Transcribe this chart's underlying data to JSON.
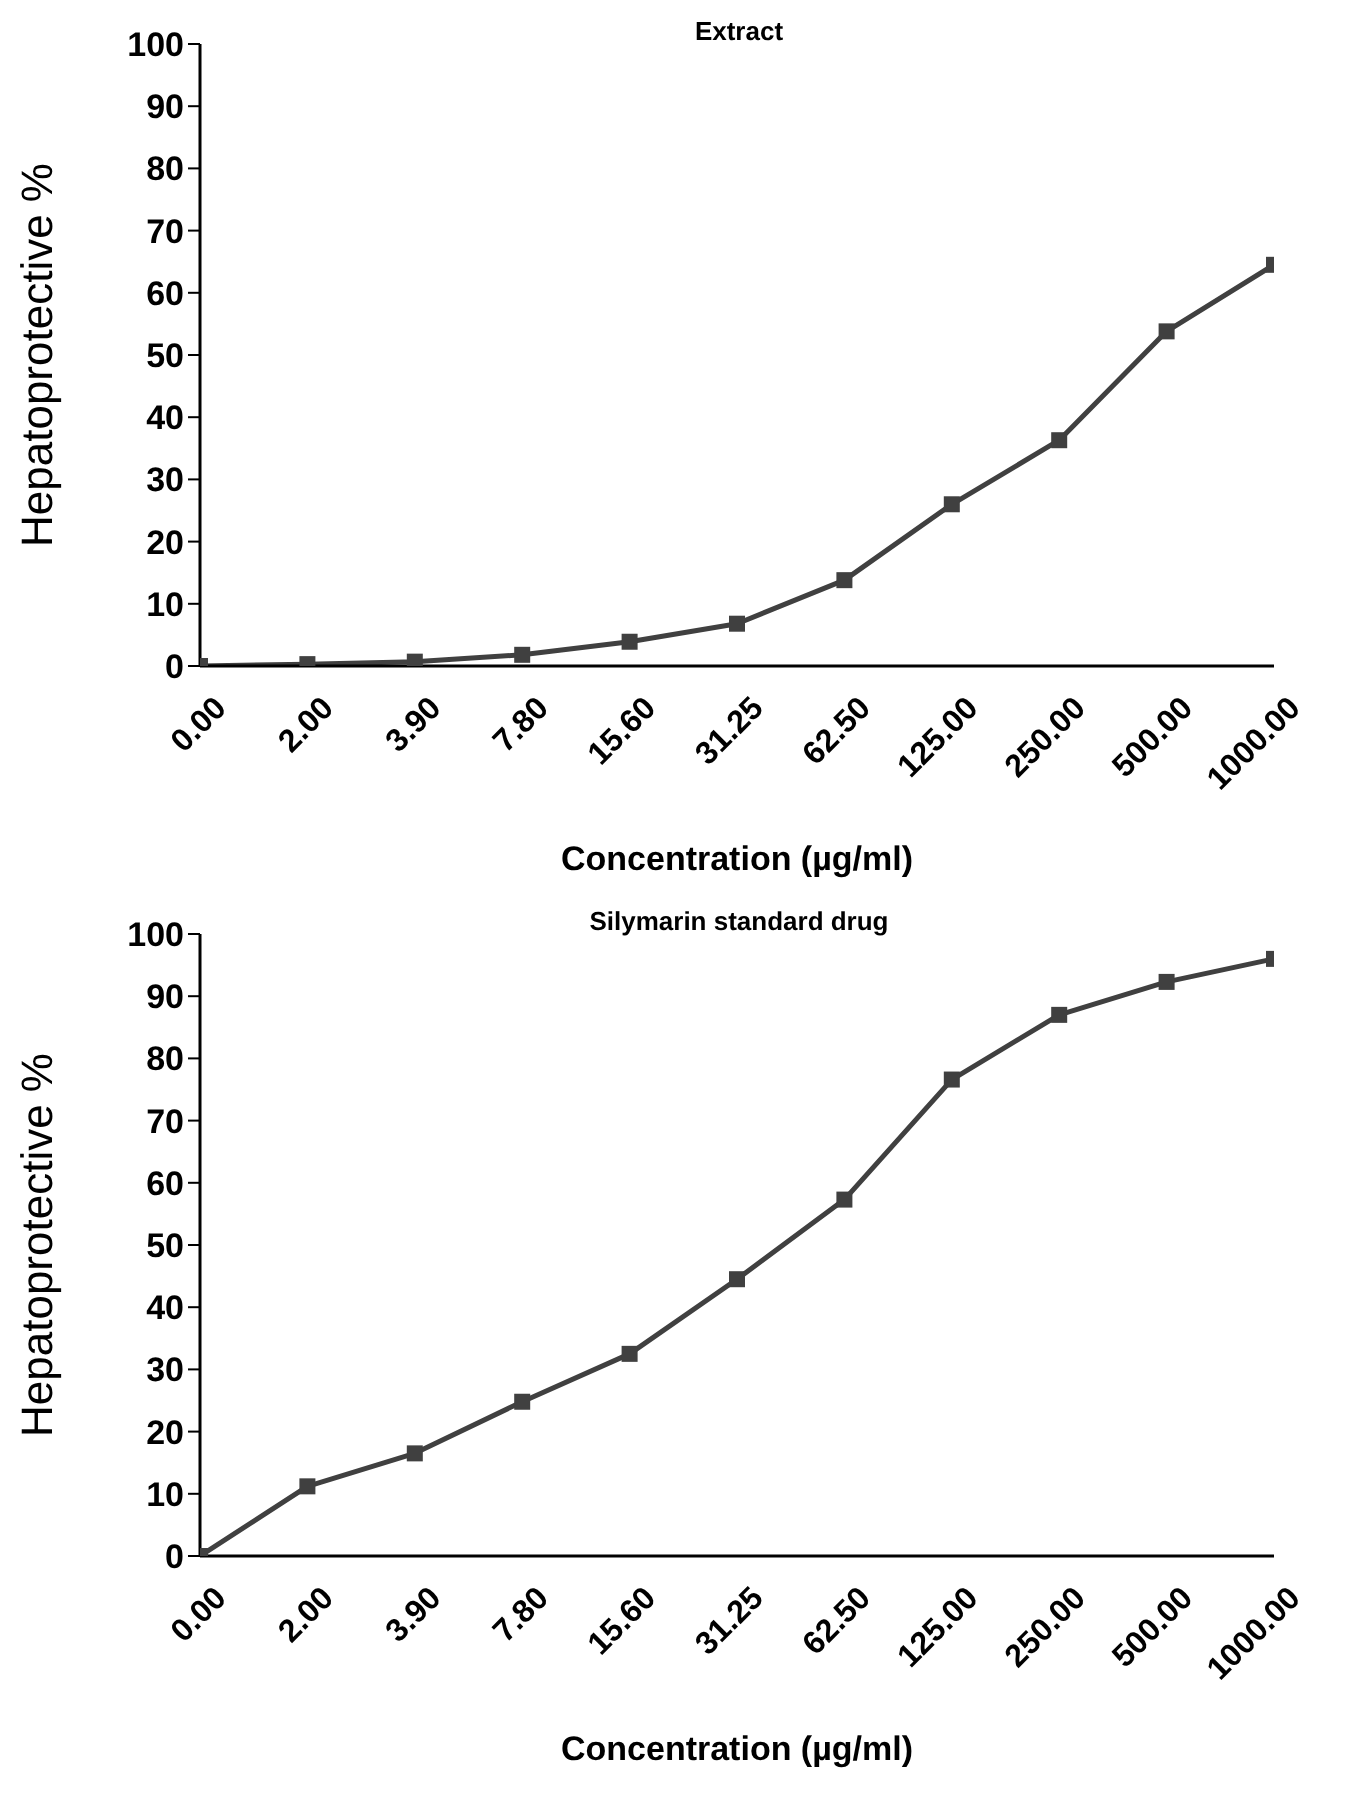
{
  "chart_data": [
    {
      "type": "line",
      "title": "Extract",
      "xlabel": "Concentration (µg/ml)",
      "ylabel": "Hepatoprotective %",
      "categories": [
        "0.00",
        "2.00",
        "3.90",
        "7.80",
        "15.60",
        "31.25",
        "62.50",
        "125.00",
        "250.00",
        "500.00",
        "1000.00"
      ],
      "series": [
        {
          "color": "#404040",
          "values": [
            0,
            0.3,
            0.7,
            1.8,
            3.9,
            6.8,
            13.8,
            26,
            36.3,
            53.8,
            64.5
          ]
        }
      ],
      "ylim": [
        0,
        100
      ],
      "yticks": [
        0,
        10,
        20,
        30,
        40,
        50,
        60,
        70,
        80,
        90,
        100
      ],
      "grid": false,
      "legend": false,
      "marker": "square",
      "line_style": "solid"
    },
    {
      "type": "line",
      "title": "Silymarin standard drug",
      "xlabel": "Concentration (µg/ml)",
      "ylabel": "Hepatoprotective %",
      "categories": [
        "0.00",
        "2.00",
        "3.90",
        "7.80",
        "15.60",
        "31.25",
        "62.50",
        "125.00",
        "250.00",
        "500.00",
        "1000.00"
      ],
      "series": [
        {
          "color": "#404040",
          "values": [
            0,
            11.2,
            16.5,
            24.8,
            32.5,
            44.5,
            57.3,
            76.6,
            87,
            92.3,
            96
          ]
        }
      ],
      "ylim": [
        0,
        100
      ],
      "yticks": [
        0,
        10,
        20,
        30,
        40,
        50,
        60,
        70,
        80,
        90,
        100
      ],
      "grid": false,
      "legend": false,
      "marker": "square",
      "line_style": "solid"
    }
  ]
}
